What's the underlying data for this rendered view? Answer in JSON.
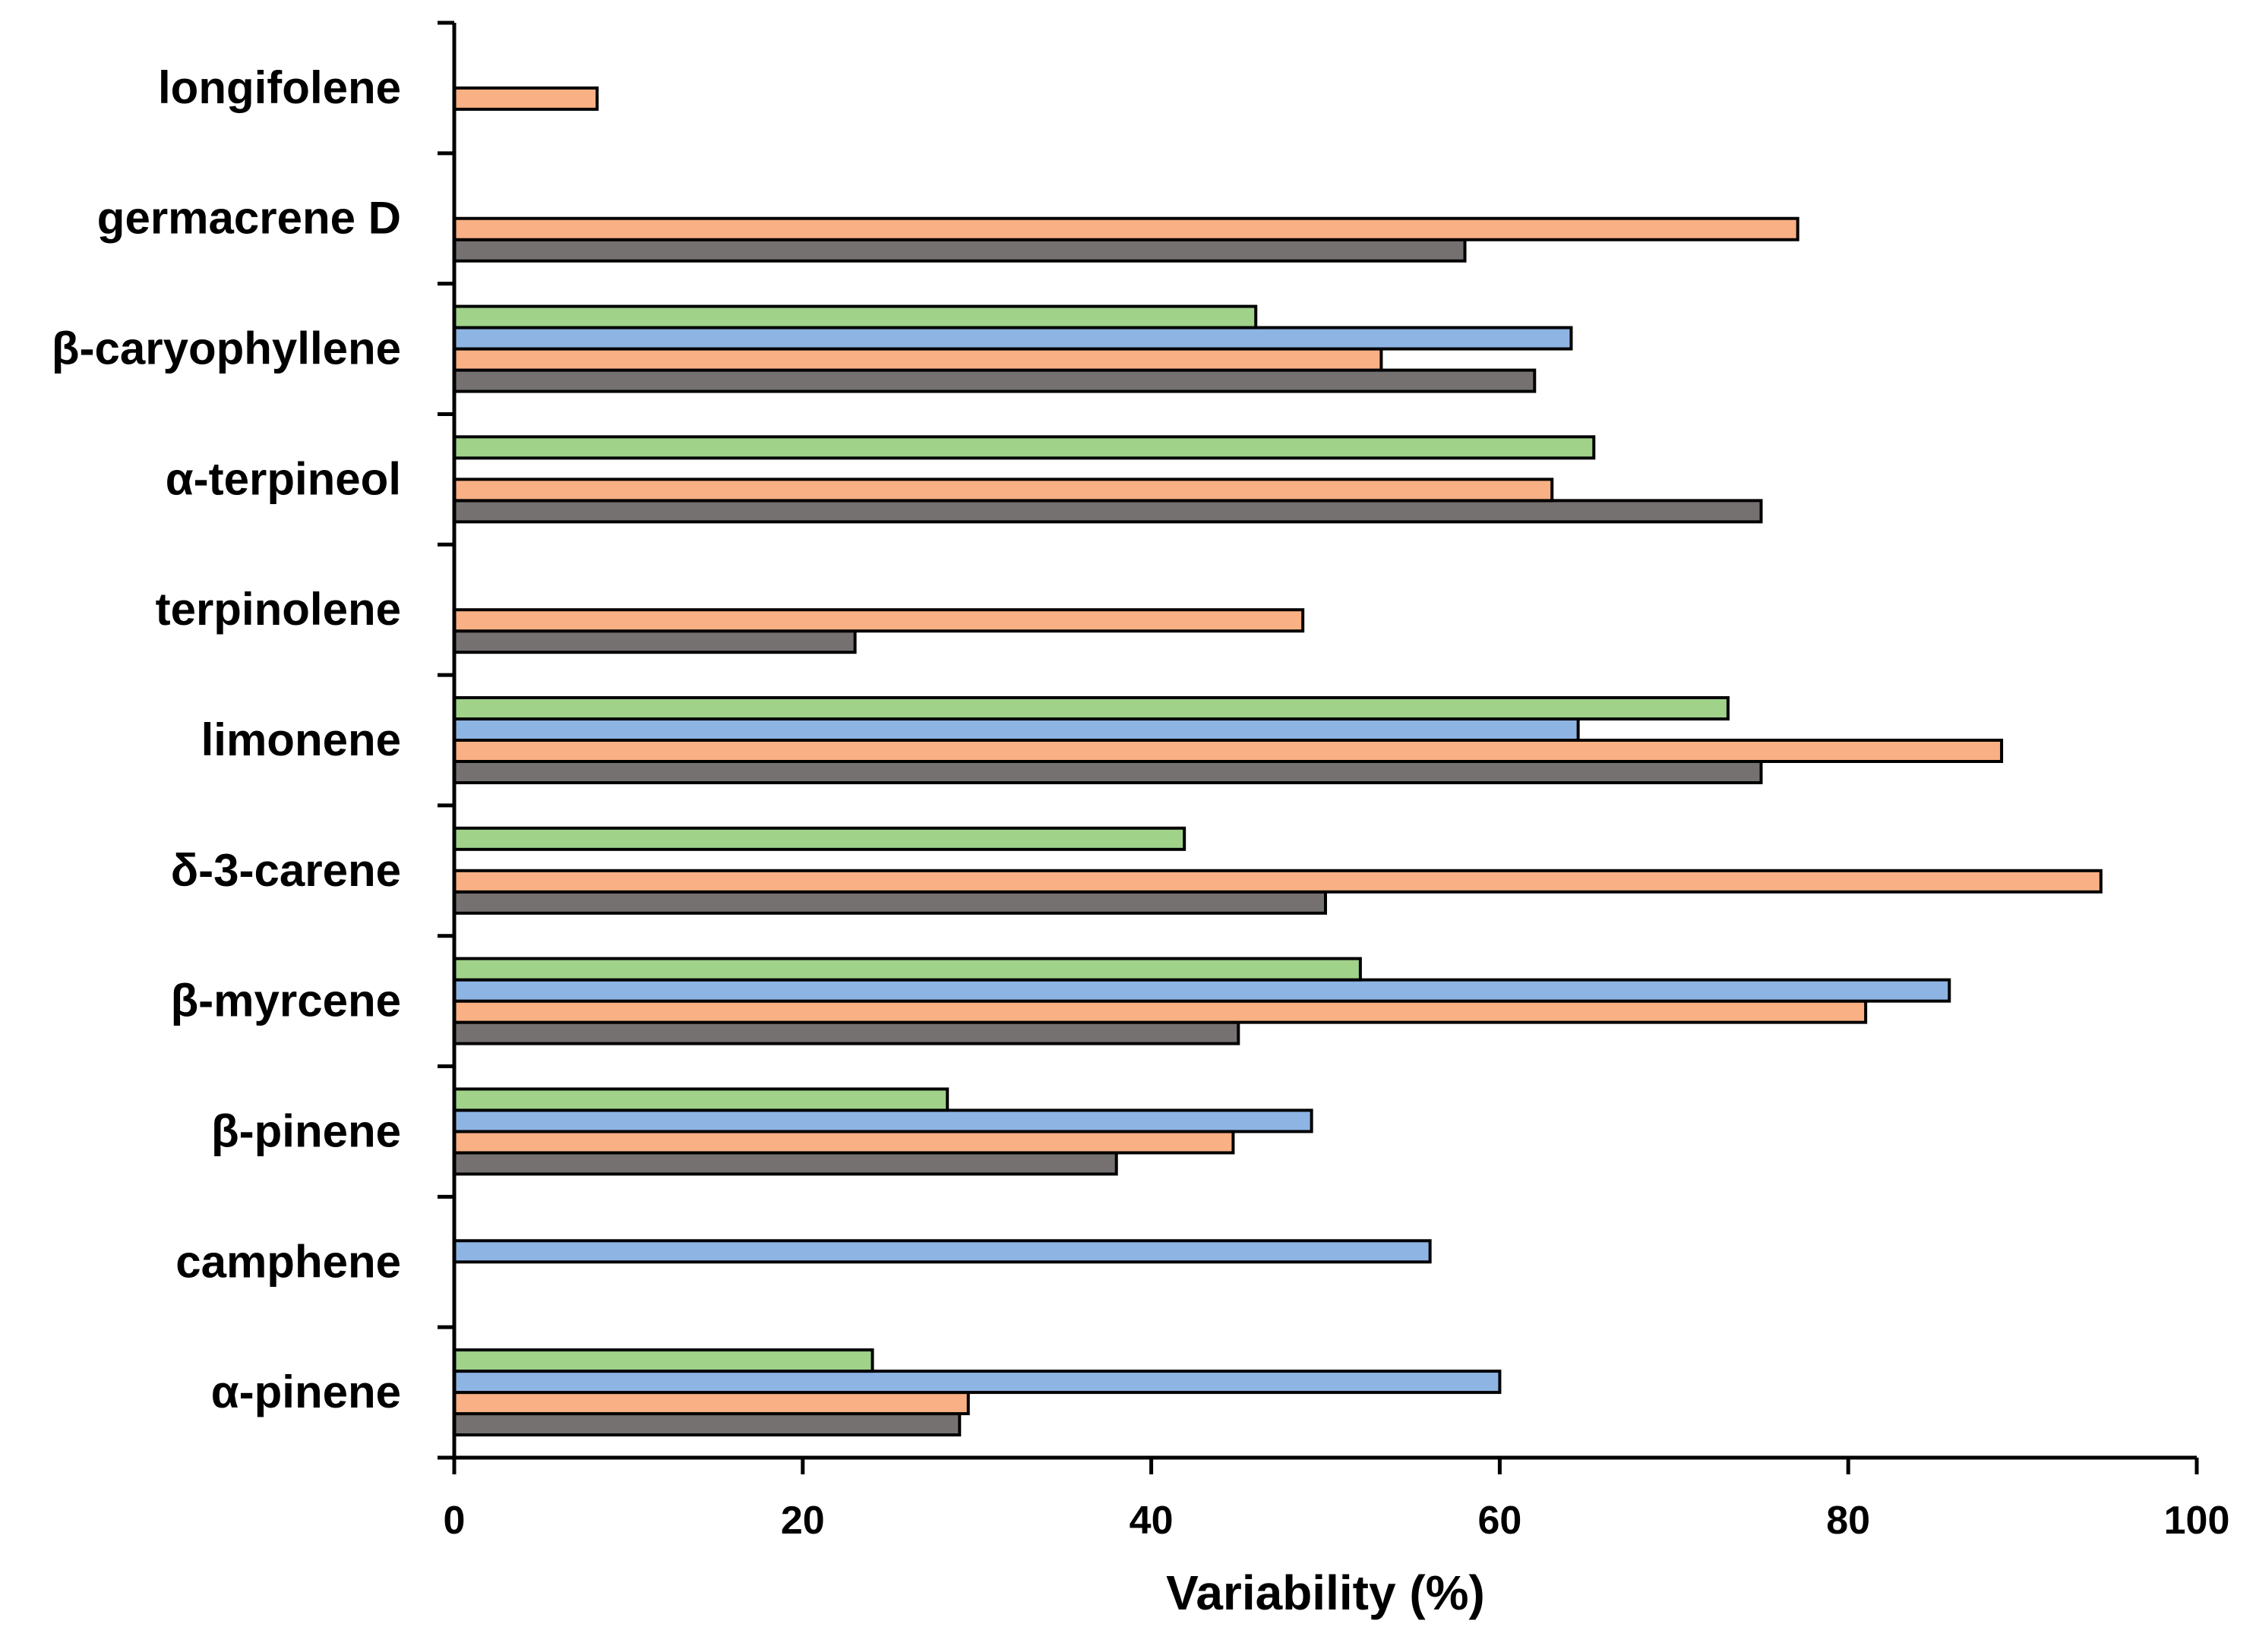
{
  "chart_data": {
    "type": "bar",
    "orientation": "horizontal",
    "title": "",
    "xlabel": "Variability (%)",
    "ylabel": "",
    "xlim": [
      0,
      100
    ],
    "x_ticks": [
      "0",
      "20",
      "40",
      "60",
      "80",
      "100"
    ],
    "grid": false,
    "legend": "none",
    "categories": [
      "α-pinene",
      "camphene",
      "β-pinene",
      "β-myrcene",
      "δ-3-carene",
      "limonene",
      "terpinolene",
      "α-terpineol",
      "β-caryophyllene",
      "germacrene D",
      "longifolene"
    ],
    "series": [
      {
        "color": "#767171",
        "values": [
          29,
          null,
          38,
          45,
          50,
          75,
          23,
          75,
          62,
          58,
          null
        ]
      },
      {
        "color": "#f8b084",
        "values": [
          29.5,
          null,
          44.7,
          81,
          94.5,
          88.8,
          48.7,
          63,
          53.2,
          77.1,
          8.2
        ]
      },
      {
        "color": "#8eb4e3",
        "values": [
          60,
          56,
          49.2,
          85.8,
          null,
          64.5,
          null,
          null,
          64.1,
          null,
          null
        ]
      },
      {
        "color": "#a0d28a",
        "values": [
          24,
          null,
          28.3,
          52,
          41.9,
          73.1,
          null,
          65.4,
          46,
          null,
          null
        ]
      }
    ]
  }
}
